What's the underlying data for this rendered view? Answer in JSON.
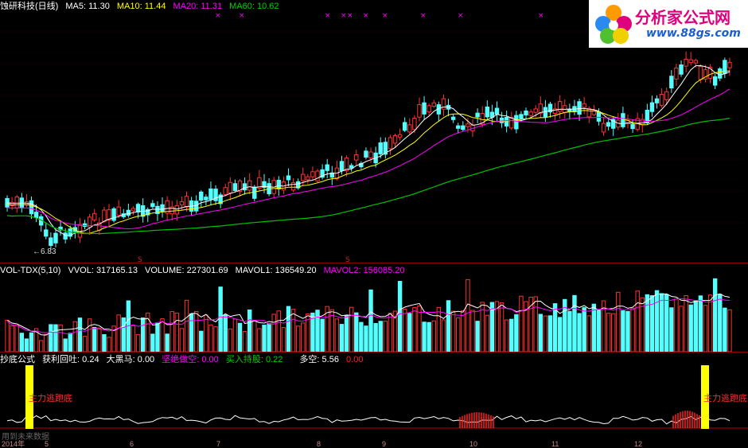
{
  "main_header": {
    "title": "蚀研科技(日线)",
    "ma5_label": "MA5: 11.30",
    "ma10_label": "MA10: 11.44",
    "ma20_label": "MA20: 11.31",
    "ma60_label": "MA60: 10.62",
    "low_price_label": "←6.83"
  },
  "volume_header": {
    "name": "VOL-TDX(5,10)",
    "vvol": "VVOL: 317165.13",
    "volume": "VOLUME: 227301.69",
    "mavol1": "MAVOL1: 136549.20",
    "mavol2": "MAVOL2: 156085.20"
  },
  "indicator_header": {
    "name": "抄底公式",
    "profit": "获利回吐: 0.24",
    "black_horse": "大黑马: 0.00",
    "short_cut": "坚绝做空: 0.00",
    "buy_hold": "买入持股: 0.22",
    "long_short": "多空: 5.56",
    "extra": "0.00",
    "left_signal": "主力逃跑底",
    "right_signal": "主力逃跑底",
    "watermark": "用到未来数据"
  },
  "logo": {
    "title": "分析家公式网",
    "url": "www.88gs.com"
  },
  "x_axis": {
    "labels": [
      "2014年",
      "5",
      "6",
      "7",
      "8",
      "9",
      "10",
      "11",
      "12"
    ]
  },
  "chart_data": [
    {
      "type": "candlestick",
      "title": "蚀研科技(日线)",
      "series": [
        {
          "name": "MA5",
          "value": 11.3
        },
        {
          "name": "MA10",
          "value": 11.44
        },
        {
          "name": "MA20",
          "value": 11.31
        },
        {
          "name": "MA60",
          "value": 10.62
        }
      ],
      "annotations": [
        "←6.83"
      ]
    },
    {
      "type": "bar",
      "title": "VOL-TDX(5,10)",
      "series": [
        {
          "name": "VVOL",
          "value": 317165.13
        },
        {
          "name": "VOLUME",
          "value": 227301.69
        },
        {
          "name": "MAVOL1",
          "value": 136549.2
        },
        {
          "name": "MAVOL2",
          "value": 156085.2
        }
      ]
    },
    {
      "type": "line",
      "title": "抄底公式",
      "series": [
        {
          "name": "获利回吐",
          "value": 0.24
        },
        {
          "name": "大黑马",
          "value": 0.0
        },
        {
          "name": "坚绝做空",
          "value": 0.0
        },
        {
          "name": "买入持股",
          "value": 0.22
        },
        {
          "name": "多空",
          "value": 5.56
        }
      ]
    }
  ],
  "colors": {
    "up": "#ff3232",
    "down": "#54ffff",
    "ma5": "#ffffff",
    "ma10": "#ffff00",
    "ma20": "#ff00ff",
    "ma60": "#00c000",
    "signal_bar": "#ffff00"
  }
}
